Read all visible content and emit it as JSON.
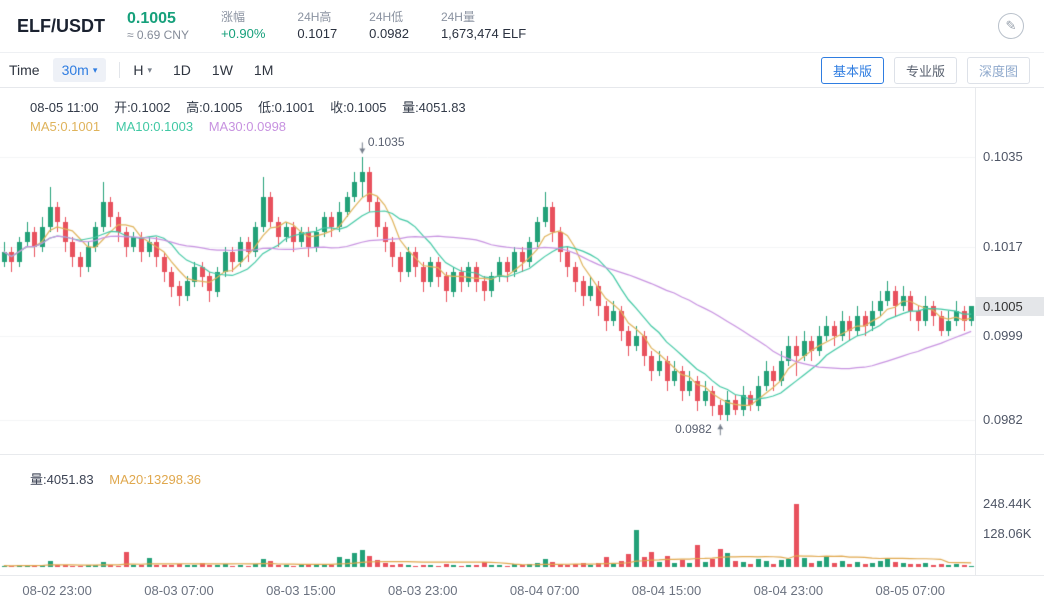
{
  "header": {
    "pair": "ELF/USDT",
    "price": "0.1005",
    "price_cny": "≈ 0.69 CNY",
    "stats": [
      {
        "label": "涨幅",
        "value": "+0.90%"
      },
      {
        "label": "24H高",
        "value": "0.1017"
      },
      {
        "label": "24H低",
        "value": "0.0982"
      },
      {
        "label": "24H量",
        "value": "1,673,474 ELF"
      }
    ]
  },
  "toolbar": {
    "time_label": "Time",
    "interval_selected": "30m",
    "unit_selected": "H",
    "periods": [
      "1D",
      "1W",
      "1M"
    ],
    "view_tabs": [
      {
        "label": "基本版",
        "active": true
      },
      {
        "label": "专业版",
        "active": false
      },
      {
        "label": "深度图",
        "active": false
      }
    ]
  },
  "chart": {
    "ohlc_readout": {
      "time": "08-05 11:00",
      "open": "开:0.1002",
      "high": "高:0.1005",
      "low": "低:0.1001",
      "close": "收:0.1005",
      "volume": "量:4051.83"
    },
    "ma_readout": [
      {
        "label": "MA5:0.1001",
        "color": "#dfb35b"
      },
      {
        "label": "MA10:0.1003",
        "color": "#41c8a4"
      },
      {
        "label": "MA30:0.0998",
        "color": "#c792e0"
      }
    ],
    "volume_readout": [
      {
        "label": "量:4051.83",
        "color": "#3c4354"
      },
      {
        "label": "MA20:13298.36",
        "color": "#e0a84e"
      }
    ]
  },
  "colors": {
    "up": "#22a178",
    "down": "#e8515d",
    "ma5": "#dfb35b",
    "ma10": "#41c8a4",
    "ma30": "#c792e0",
    "vol_ma20": "#e0a84e",
    "grid": "#f3f4f6",
    "accent_blue": "#2f7de1",
    "price_green": "#16a07b",
    "annotation": "#78808e"
  },
  "chart_data": {
    "type": "candlestick",
    "pair": "ELF/USDT",
    "interval": "30m",
    "candle_format": [
      "open",
      "high",
      "low",
      "close",
      "volume"
    ],
    "ylim": [
      0.0975,
      0.1049
    ],
    "vlim": [
      0,
      330000
    ],
    "price_ticks": [
      {
        "value": 0.1035,
        "label": "0.1035"
      },
      {
        "value": 0.1017,
        "label": "0.1017"
      },
      {
        "value": 0.0999,
        "label": "0.0999"
      },
      {
        "value": 0.0982,
        "label": "0.0982"
      }
    ],
    "current_price": {
      "value": 0.1005,
      "label": "0.1005"
    },
    "volume_ticks": [
      {
        "value": 248440,
        "label": "248.44K"
      },
      {
        "value": 128060,
        "label": "128.06K"
      }
    ],
    "x_ticks": [
      {
        "index": 7,
        "label": "08-02 23:00"
      },
      {
        "index": 23,
        "label": "08-03 07:00"
      },
      {
        "index": 39,
        "label": "08-03 15:00"
      },
      {
        "index": 55,
        "label": "08-03 23:00"
      },
      {
        "index": 71,
        "label": "08-04 07:00"
      },
      {
        "index": 87,
        "label": "08-04 15:00"
      },
      {
        "index": 103,
        "label": "08-04 23:00"
      },
      {
        "index": 119,
        "label": "08-05 07:00"
      }
    ],
    "annotations": {
      "high_label": "0.1035",
      "low_label": "0.0982"
    },
    "candles": [
      [
        0.1014,
        0.1018,
        0.1013,
        0.1016,
        5200
      ],
      [
        0.1016,
        0.1017,
        0.1012,
        0.1014,
        4100
      ],
      [
        0.1014,
        0.1019,
        0.1013,
        0.1018,
        6300
      ],
      [
        0.1018,
        0.1022,
        0.1017,
        0.102,
        7800
      ],
      [
        0.102,
        0.1021,
        0.1015,
        0.1017,
        3900
      ],
      [
        0.1017,
        0.1023,
        0.1016,
        0.1021,
        8600
      ],
      [
        0.1021,
        0.1029,
        0.102,
        0.1025,
        22000
      ],
      [
        0.1025,
        0.1026,
        0.102,
        0.1022,
        9400
      ],
      [
        0.1022,
        0.1023,
        0.1016,
        0.1018,
        7100
      ],
      [
        0.1018,
        0.1019,
        0.1013,
        0.1015,
        5600
      ],
      [
        0.1015,
        0.1016,
        0.1011,
        0.1013,
        4800
      ],
      [
        0.1013,
        0.1018,
        0.1012,
        0.1017,
        6900
      ],
      [
        0.1017,
        0.1022,
        0.1016,
        0.1021,
        8200
      ],
      [
        0.1021,
        0.103,
        0.102,
        0.1026,
        18000
      ],
      [
        0.1026,
        0.1027,
        0.1021,
        0.1023,
        7500
      ],
      [
        0.1023,
        0.1024,
        0.1018,
        0.102,
        5300
      ],
      [
        0.102,
        0.1021,
        0.1015,
        0.1017,
        60000
      ],
      [
        0.1017,
        0.102,
        0.1016,
        0.1019,
        9000
      ],
      [
        0.1019,
        0.102,
        0.1014,
        0.1016,
        7200
      ],
      [
        0.1016,
        0.1019,
        0.1015,
        0.1018,
        35000
      ],
      [
        0.1018,
        0.1019,
        0.1013,
        0.1015,
        6100
      ],
      [
        0.1015,
        0.1016,
        0.101,
        0.1012,
        5900
      ],
      [
        0.1012,
        0.1013,
        0.1007,
        0.1009,
        8800
      ],
      [
        0.1009,
        0.101,
        0.1005,
        0.1007,
        12000
      ],
      [
        0.1007,
        0.1011,
        0.1006,
        0.101,
        7400
      ],
      [
        0.101,
        0.1014,
        0.1009,
        0.1013,
        6600
      ],
      [
        0.1013,
        0.1014,
        0.1009,
        0.1011,
        15000
      ],
      [
        0.1011,
        0.1012,
        0.1006,
        0.1008,
        9800
      ],
      [
        0.1008,
        0.1013,
        0.1007,
        0.1012,
        7700
      ],
      [
        0.1012,
        0.1017,
        0.1011,
        0.1016,
        10500
      ],
      [
        0.1016,
        0.1017,
        0.1012,
        0.1014,
        5400
      ],
      [
        0.1014,
        0.1019,
        0.1013,
        0.1018,
        8900
      ],
      [
        0.1018,
        0.1019,
        0.1014,
        0.1016,
        4700
      ],
      [
        0.1016,
        0.1022,
        0.1015,
        0.1021,
        11000
      ],
      [
        0.1021,
        0.1031,
        0.102,
        0.1027,
        30000
      ],
      [
        0.1027,
        0.1028,
        0.1021,
        0.1022,
        25000
      ],
      [
        0.1022,
        0.1023,
        0.1017,
        0.1019,
        8300
      ],
      [
        0.1019,
        0.1022,
        0.1018,
        0.1021,
        6500
      ],
      [
        0.1021,
        0.1022,
        0.1016,
        0.1018,
        5800
      ],
      [
        0.1018,
        0.1021,
        0.1017,
        0.102,
        7600
      ],
      [
        0.102,
        0.1021,
        0.1015,
        0.1017,
        6200
      ],
      [
        0.1017,
        0.1021,
        0.1016,
        0.102,
        9100
      ],
      [
        0.102,
        0.1024,
        0.1019,
        0.1023,
        12500
      ],
      [
        0.1023,
        0.1024,
        0.1019,
        0.1021,
        8000
      ],
      [
        0.1021,
        0.1026,
        0.102,
        0.1024,
        40000
      ],
      [
        0.1024,
        0.1028,
        0.1023,
        0.1027,
        32000
      ],
      [
        0.1027,
        0.1032,
        0.1026,
        0.103,
        55000
      ],
      [
        0.103,
        0.1035,
        0.1027,
        0.1032,
        65000
      ],
      [
        0.1032,
        0.1033,
        0.1024,
        0.1026,
        45000
      ],
      [
        0.1026,
        0.1027,
        0.1019,
        0.1021,
        28000
      ],
      [
        0.1021,
        0.1022,
        0.1016,
        0.1018,
        14000
      ],
      [
        0.1018,
        0.1019,
        0.1013,
        0.1015,
        9600
      ],
      [
        0.1015,
        0.1016,
        0.101,
        0.1012,
        11200
      ],
      [
        0.1012,
        0.1017,
        0.1011,
        0.1016,
        7300
      ],
      [
        0.1016,
        0.1017,
        0.1011,
        0.1013,
        5100
      ],
      [
        0.1013,
        0.1014,
        0.1008,
        0.101,
        8700
      ],
      [
        0.101,
        0.1015,
        0.1009,
        0.1014,
        6800
      ],
      [
        0.1014,
        0.1015,
        0.1009,
        0.1011,
        4900
      ],
      [
        0.1011,
        0.1012,
        0.1006,
        0.1008,
        10800
      ],
      [
        0.1008,
        0.1013,
        0.1007,
        0.1012,
        7000
      ],
      [
        0.1012,
        0.1013,
        0.1008,
        0.101,
        5500
      ],
      [
        0.101,
        0.1014,
        0.1009,
        0.1013,
        6400
      ],
      [
        0.1013,
        0.1014,
        0.1008,
        0.101,
        8100
      ],
      [
        0.101,
        0.1011,
        0.1006,
        0.1008,
        20000
      ],
      [
        0.1008,
        0.1012,
        0.1007,
        0.1011,
        9300
      ],
      [
        0.1011,
        0.1015,
        0.101,
        0.1014,
        7900
      ],
      [
        0.1014,
        0.1015,
        0.101,
        0.1012,
        5700
      ],
      [
        0.1012,
        0.1017,
        0.1011,
        0.1016,
        10200
      ],
      [
        0.1016,
        0.1017,
        0.1012,
        0.1014,
        6000
      ],
      [
        0.1014,
        0.1019,
        0.1013,
        0.1018,
        12800
      ],
      [
        0.1018,
        0.1023,
        0.1017,
        0.1022,
        16500
      ],
      [
        0.1022,
        0.1028,
        0.1021,
        0.1025,
        30000
      ],
      [
        0.1025,
        0.1026,
        0.1018,
        0.102,
        18500
      ],
      [
        0.102,
        0.1021,
        0.1014,
        0.1016,
        13200
      ],
      [
        0.1016,
        0.1017,
        0.1011,
        0.1013,
        9500
      ],
      [
        0.1013,
        0.1014,
        0.1008,
        0.101,
        11800
      ],
      [
        0.101,
        0.1011,
        0.1005,
        0.1007,
        14500
      ],
      [
        0.1007,
        0.1011,
        0.1006,
        0.1009,
        8400
      ],
      [
        0.1009,
        0.101,
        0.1003,
        0.1005,
        16800
      ],
      [
        0.1005,
        0.1006,
        0.1,
        0.1002,
        40000
      ],
      [
        0.1002,
        0.1006,
        0.1001,
        0.1004,
        12100
      ],
      [
        0.1004,
        0.1005,
        0.0998,
        0.1,
        22500
      ],
      [
        0.1,
        0.1001,
        0.0995,
        0.0997,
        50000
      ],
      [
        0.0997,
        0.1001,
        0.0996,
        0.0999,
        145000
      ],
      [
        0.0999,
        0.1,
        0.0993,
        0.0995,
        38000
      ],
      [
        0.0995,
        0.0996,
        0.099,
        0.0992,
        60000
      ],
      [
        0.0992,
        0.0996,
        0.0991,
        0.0994,
        21000
      ],
      [
        0.0994,
        0.0995,
        0.0988,
        0.099,
        45000
      ],
      [
        0.099,
        0.0994,
        0.0989,
        0.0992,
        17500
      ],
      [
        0.0992,
        0.0993,
        0.0986,
        0.0988,
        26000
      ],
      [
        0.0988,
        0.0992,
        0.0987,
        0.099,
        14800
      ],
      [
        0.099,
        0.0991,
        0.0984,
        0.0986,
        85000
      ],
      [
        0.0986,
        0.099,
        0.0985,
        0.0988,
        19200
      ],
      [
        0.0988,
        0.0989,
        0.0983,
        0.0985,
        33000
      ],
      [
        0.0985,
        0.0986,
        0.0982,
        0.0983,
        70000
      ],
      [
        0.0983,
        0.0988,
        0.0982,
        0.0986,
        55000
      ],
      [
        0.0986,
        0.0987,
        0.0983,
        0.0984,
        24000
      ],
      [
        0.0984,
        0.0989,
        0.0983,
        0.0987,
        18700
      ],
      [
        0.0987,
        0.0988,
        0.0984,
        0.0985,
        12900
      ],
      [
        0.0985,
        0.0991,
        0.0984,
        0.0989,
        30000
      ],
      [
        0.0989,
        0.0994,
        0.0988,
        0.0992,
        25500
      ],
      [
        0.0992,
        0.0993,
        0.0988,
        0.099,
        13600
      ],
      [
        0.099,
        0.0996,
        0.0989,
        0.0994,
        28000
      ],
      [
        0.0994,
        0.0999,
        0.0993,
        0.0997,
        32500
      ],
      [
        0.0997,
        0.0999,
        0.0991,
        0.0995,
        248440
      ],
      [
        0.0995,
        0.1,
        0.0994,
        0.0998,
        35000
      ],
      [
        0.0998,
        0.0999,
        0.0994,
        0.0996,
        15400
      ],
      [
        0.0996,
        0.1001,
        0.0995,
        0.0999,
        21800
      ],
      [
        0.0999,
        0.1003,
        0.0998,
        0.1001,
        40000
      ],
      [
        0.1001,
        0.1002,
        0.0997,
        0.0999,
        16200
      ],
      [
        0.0999,
        0.1004,
        0.0998,
        0.1002,
        23400
      ],
      [
        0.1002,
        0.1003,
        0.0998,
        0.1,
        11700
      ],
      [
        0.1,
        0.1005,
        0.0999,
        0.1003,
        19600
      ],
      [
        0.1003,
        0.1004,
        0.0999,
        0.1001,
        9900
      ],
      [
        0.1001,
        0.1006,
        0.1,
        0.1004,
        17300
      ],
      [
        0.1004,
        0.1008,
        0.1003,
        0.1006,
        22600
      ],
      [
        0.1006,
        0.101,
        0.1005,
        0.1008,
        35000
      ],
      [
        0.1008,
        0.1009,
        0.1003,
        0.1005,
        18900
      ],
      [
        0.1005,
        0.1009,
        0.1004,
        0.1007,
        14100
      ],
      [
        0.1007,
        0.1008,
        0.1002,
        0.1004,
        12600
      ],
      [
        0.1004,
        0.1005,
        0.1,
        0.1002,
        10300
      ],
      [
        0.1002,
        0.1007,
        0.1001,
        0.1005,
        13800
      ],
      [
        0.1005,
        0.1006,
        0.1001,
        0.1003,
        8500
      ],
      [
        0.1003,
        0.1004,
        0.0999,
        0.1,
        11400
      ],
      [
        0.1,
        0.1004,
        0.0999,
        0.1002,
        9700
      ],
      [
        0.1002,
        0.1006,
        0.1001,
        0.1004,
        12200
      ],
      [
        0.1004,
        0.1005,
        0.1,
        0.1002,
        7800
      ],
      [
        0.1002,
        0.1005,
        0.1001,
        0.1005,
        4051.83
      ]
    ]
  }
}
